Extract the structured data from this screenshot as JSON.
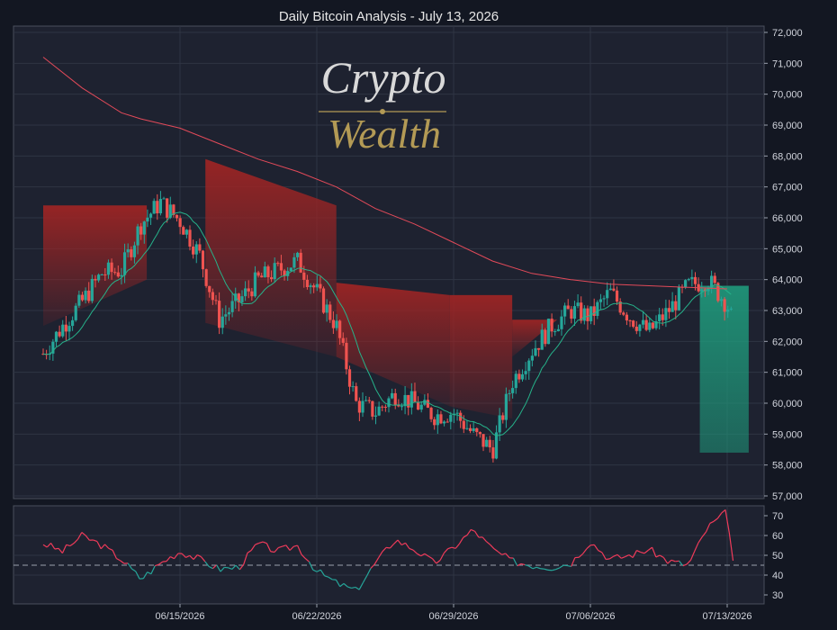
{
  "chart_data": {
    "type": "candlestick",
    "title": "Daily Bitcoin Analysis - July 13, 2026",
    "watermark": {
      "line1": "Crypto",
      "line2": "Wealth"
    },
    "colors": {
      "background": "#131722",
      "panel": "#1e2230",
      "grid": "#2f3443",
      "up": "#26a69a",
      "down": "#ef5350",
      "ma": "#26b28a",
      "ma_long": "#e24a59",
      "band_red": "#8b1e1e",
      "band_green": "#1f8f74",
      "rsi_up": "#26a69a",
      "rsi_down": "#ef3b5a"
    },
    "price_axis": {
      "min": 57000,
      "max": 72000,
      "ticks": [
        57000,
        58000,
        59000,
        60000,
        61000,
        62000,
        63000,
        64000,
        65000,
        66000,
        67000,
        68000,
        69000,
        70000,
        71000,
        72000
      ]
    },
    "rsi_axis": {
      "min": 30,
      "max": 70,
      "ticks": [
        30,
        40,
        50,
        60,
        70
      ],
      "threshold": 45
    },
    "x_axis": {
      "ticks": [
        "06/15/2026",
        "06/22/2026",
        "06/29/2026",
        "07/06/2026",
        "07/13/2026"
      ],
      "tick_days": [
        7,
        14,
        21,
        28,
        35
      ],
      "start_day": 0,
      "end_day": 35
    },
    "daily_trend": [
      {
        "day": 0,
        "close": 61600
      },
      {
        "day": 1,
        "close": 62500
      },
      {
        "day": 2,
        "close": 63300
      },
      {
        "day": 3,
        "close": 64200
      },
      {
        "day": 4,
        "close": 64300
      },
      {
        "day": 5,
        "close": 65800
      },
      {
        "day": 6,
        "close": 66500
      },
      {
        "day": 7,
        "close": 65900
      },
      {
        "day": 8,
        "close": 64800
      },
      {
        "day": 9,
        "close": 62700
      },
      {
        "day": 10,
        "close": 63300
      },
      {
        "day": 11,
        "close": 64000
      },
      {
        "day": 12,
        "close": 64300
      },
      {
        "day": 13,
        "close": 64600
      },
      {
        "day": 14,
        "close": 63600
      },
      {
        "day": 15,
        "close": 62500
      },
      {
        "day": 16,
        "close": 60000
      },
      {
        "day": 17,
        "close": 59700
      },
      {
        "day": 18,
        "close": 60300
      },
      {
        "day": 19,
        "close": 60000
      },
      {
        "day": 20,
        "close": 59600
      },
      {
        "day": 21,
        "close": 59700
      },
      {
        "day": 22,
        "close": 59000
      },
      {
        "day": 23,
        "close": 58500
      },
      {
        "day": 24,
        "close": 60700
      },
      {
        "day": 25,
        "close": 61700
      },
      {
        "day": 26,
        "close": 62500
      },
      {
        "day": 27,
        "close": 63000
      },
      {
        "day": 28,
        "close": 62800
      },
      {
        "day": 29,
        "close": 63600
      },
      {
        "day": 30,
        "close": 62800
      },
      {
        "day": 31,
        "close": 62300
      },
      {
        "day": 32,
        "close": 63000
      },
      {
        "day": 33,
        "close": 63800
      },
      {
        "day": 34,
        "close": 64000
      },
      {
        "day": 35,
        "close": 63200
      },
      {
        "day": 35.2,
        "close": 62800
      }
    ],
    "ma_long": [
      {
        "day": 0,
        "value": 71200
      },
      {
        "day": 2,
        "value": 70200
      },
      {
        "day": 4,
        "value": 69400
      },
      {
        "day": 5,
        "value": 69200
      },
      {
        "day": 7,
        "value": 68900
      },
      {
        "day": 9,
        "value": 68400
      },
      {
        "day": 11,
        "value": 67900
      },
      {
        "day": 13,
        "value": 67500
      },
      {
        "day": 15,
        "value": 67000
      },
      {
        "day": 17,
        "value": 66300
      },
      {
        "day": 19,
        "value": 65800
      },
      {
        "day": 21,
        "value": 65200
      },
      {
        "day": 23,
        "value": 64600
      },
      {
        "day": 25,
        "value": 64200
      },
      {
        "day": 27,
        "value": 64000
      },
      {
        "day": 29,
        "value": 63850
      },
      {
        "day": 31,
        "value": 63800
      },
      {
        "day": 33,
        "value": 63750
      },
      {
        "day": 35,
        "value": 63700
      }
    ],
    "red_bands": [
      {
        "start": 0,
        "end": 5.3,
        "top": 66400,
        "bottom_start": 62500,
        "bottom_end": 64000
      },
      {
        "start": 8.3,
        "end": 15,
        "top": 67900,
        "top_end": 66400,
        "bottom_start": 62600,
        "bottom_end": 61500
      },
      {
        "start": 15,
        "end": 20.8,
        "top": 63900,
        "top_end": 63500,
        "bottom_start": 61500,
        "bottom_end": 59900
      },
      {
        "start": 20.8,
        "end": 24,
        "top": 63500,
        "bottom_start": 59900,
        "bottom_end": 59500
      },
      {
        "start": 24,
        "end": 26.3,
        "top": 62700,
        "bottom_start": 61500,
        "bottom_end": 62700
      }
    ],
    "green_band": {
      "start": 33.6,
      "end": 36.1,
      "top": 63800,
      "bottom": 58400
    },
    "rsi": [
      {
        "day": 0,
        "value": 56
      },
      {
        "day": 1,
        "value": 52
      },
      {
        "day": 2,
        "value": 60
      },
      {
        "day": 3,
        "value": 55
      },
      {
        "day": 4,
        "value": 48
      },
      {
        "day": 5,
        "value": 38
      },
      {
        "day": 6,
        "value": 46
      },
      {
        "day": 7,
        "value": 52
      },
      {
        "day": 8,
        "value": 48
      },
      {
        "day": 9,
        "value": 43
      },
      {
        "day": 10,
        "value": 44
      },
      {
        "day": 11,
        "value": 56
      },
      {
        "day": 12,
        "value": 52
      },
      {
        "day": 13,
        "value": 55
      },
      {
        "day": 14,
        "value": 42
      },
      {
        "day": 15,
        "value": 36
      },
      {
        "day": 16,
        "value": 32
      },
      {
        "day": 17,
        "value": 46
      },
      {
        "day": 18,
        "value": 58
      },
      {
        "day": 19,
        "value": 53
      },
      {
        "day": 20,
        "value": 46
      },
      {
        "day": 21,
        "value": 54
      },
      {
        "day": 22,
        "value": 63
      },
      {
        "day": 23,
        "value": 53
      },
      {
        "day": 24,
        "value": 47
      },
      {
        "day": 25,
        "value": 45
      },
      {
        "day": 26,
        "value": 44
      },
      {
        "day": 27,
        "value": 46
      },
      {
        "day": 28,
        "value": 57
      },
      {
        "day": 29,
        "value": 48
      },
      {
        "day": 30,
        "value": 50
      },
      {
        "day": 31,
        "value": 53
      },
      {
        "day": 32,
        "value": 47
      },
      {
        "day": 33,
        "value": 45
      },
      {
        "day": 34,
        "value": 64
      },
      {
        "day": 35,
        "value": 72
      },
      {
        "day": 35.3,
        "value": 47
      }
    ]
  }
}
